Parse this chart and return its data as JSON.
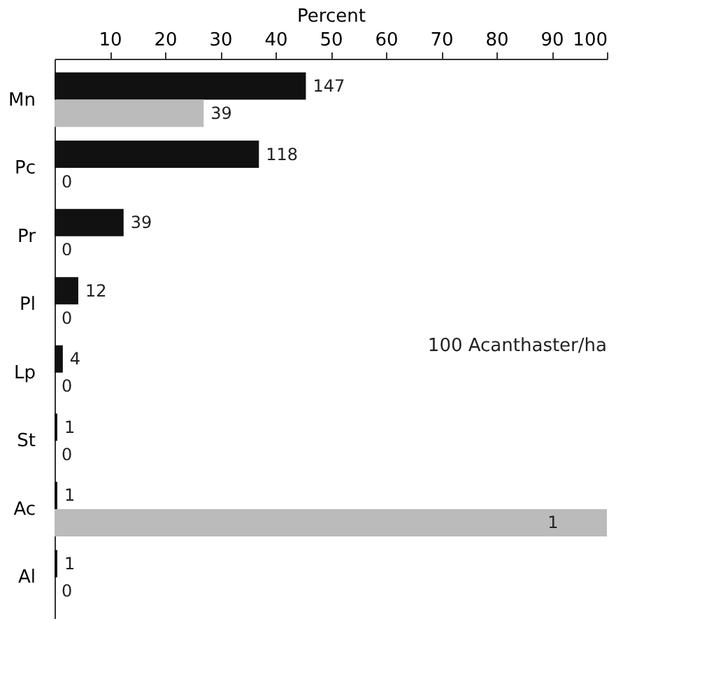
{
  "chart_data": {
    "type": "bar",
    "orientation": "horizontal",
    "xlabel": "Percent",
    "categories": [
      "Mn",
      "Pc",
      "Pr",
      "Pl",
      "Lp",
      "St",
      "Ac",
      "Al"
    ],
    "xlim": [
      0,
      100
    ],
    "xticks": [
      10,
      20,
      30,
      40,
      50,
      60,
      70,
      80,
      90,
      100
    ],
    "grid": false,
    "legend": false,
    "series": [
      {
        "color": "#111111",
        "values": [
          45.5,
          37,
          12.5,
          4.3,
          1.5,
          0.5,
          0.5,
          0.5
        ]
      },
      {
        "color": "#bbbbbb",
        "values": [
          27,
          0,
          0,
          0,
          0,
          0,
          100,
          0
        ]
      }
    ],
    "annotations": [
      "100 Acanthaster/ha",
      {
        "text": "147",
        "x": 45.5,
        "y": "Mn"
      },
      {
        "text": "39",
        "x": 27,
        "y": "Mn"
      },
      {
        "text": "118",
        "x": 37,
        "y": "Pc"
      },
      {
        "text": "0",
        "x": 0,
        "y": "Pc"
      },
      {
        "text": "39",
        "x": 12.5,
        "y": "Pr"
      },
      {
        "text": "0",
        "x": 0,
        "y": "Pr"
      },
      {
        "text": "12",
        "x": 4.3,
        "y": "Pl"
      },
      {
        "text": "0",
        "x": 0,
        "y": "Pl"
      },
      {
        "text": "4",
        "x": 1.5,
        "y": "Lp"
      },
      {
        "text": "0",
        "x": 0,
        "y": "Lp"
      },
      {
        "text": "1",
        "x": 0.5,
        "y": "St"
      },
      {
        "text": "0",
        "x": 0,
        "y": "St"
      },
      {
        "text": "1",
        "x": 0.5,
        "y": "Ac"
      },
      {
        "text": "1",
        "x": 88,
        "y": "Ac"
      },
      {
        "text": "1",
        "x": 0.5,
        "y": "Al"
      },
      {
        "text": "0",
        "x": 0,
        "y": "Al"
      }
    ]
  }
}
